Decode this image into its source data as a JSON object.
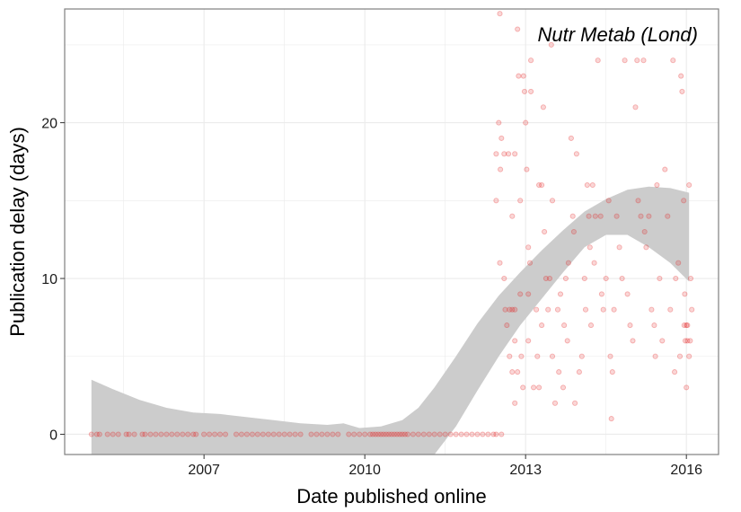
{
  "chart_data": {
    "type": "scatter",
    "title": "",
    "annotation": "Nutr Metab (Lond)",
    "xlabel": "Date published online",
    "ylabel": "Publication delay (days)",
    "xlim": [
      2004.4,
      2016.6
    ],
    "ylim": [
      -1.3,
      27.3
    ],
    "x_ticks": [
      2007,
      2010,
      2013,
      2016
    ],
    "x_tick_labels": [
      "2007",
      "2010",
      "2013",
      "2016"
    ],
    "y_ticks": [
      0,
      10,
      20
    ],
    "y_tick_labels": [
      "0",
      "10",
      "20"
    ],
    "grid": true,
    "legend": "none",
    "colors": {
      "points": "#e31a1c",
      "smooth_band": "#cccccc",
      "panel_border": "#7f7f7f",
      "grid": "#ebebeb"
    },
    "point_alpha": 0.18,
    "series": [
      {
        "points": [
          [
            2004.9,
            0
          ],
          [
            2005.0,
            0
          ],
          [
            2005.05,
            0
          ],
          [
            2005.2,
            0
          ],
          [
            2005.3,
            0
          ],
          [
            2005.4,
            0
          ],
          [
            2005.55,
            0
          ],
          [
            2005.6,
            0
          ],
          [
            2005.7,
            0
          ],
          [
            2005.85,
            0
          ],
          [
            2005.9,
            0
          ],
          [
            2006.0,
            0
          ],
          [
            2006.1,
            0
          ],
          [
            2006.2,
            0
          ],
          [
            2006.3,
            0
          ],
          [
            2006.4,
            0
          ],
          [
            2006.5,
            0
          ],
          [
            2006.6,
            0
          ],
          [
            2006.7,
            0
          ],
          [
            2006.8,
            0
          ],
          [
            2006.85,
            0
          ],
          [
            2007.0,
            0
          ],
          [
            2007.1,
            0
          ],
          [
            2007.2,
            0
          ],
          [
            2007.3,
            0
          ],
          [
            2007.4,
            0
          ],
          [
            2007.6,
            0
          ],
          [
            2007.7,
            0
          ],
          [
            2007.8,
            0
          ],
          [
            2007.9,
            0
          ],
          [
            2008.0,
            0
          ],
          [
            2008.1,
            0
          ],
          [
            2008.2,
            0
          ],
          [
            2008.3,
            0
          ],
          [
            2008.4,
            0
          ],
          [
            2008.5,
            0
          ],
          [
            2008.6,
            0
          ],
          [
            2008.7,
            0
          ],
          [
            2008.8,
            0
          ],
          [
            2009.0,
            0
          ],
          [
            2009.1,
            0
          ],
          [
            2009.2,
            0
          ],
          [
            2009.3,
            0
          ],
          [
            2009.4,
            0
          ],
          [
            2009.5,
            0
          ],
          [
            2009.7,
            0
          ],
          [
            2009.8,
            0
          ],
          [
            2009.9,
            0
          ],
          [
            2010.0,
            0
          ],
          [
            2010.1,
            0
          ],
          [
            2010.15,
            0
          ],
          [
            2010.2,
            0
          ],
          [
            2010.25,
            0
          ],
          [
            2010.3,
            0
          ],
          [
            2010.35,
            0
          ],
          [
            2010.4,
            0
          ],
          [
            2010.45,
            0
          ],
          [
            2010.5,
            0
          ],
          [
            2010.55,
            0
          ],
          [
            2010.6,
            0
          ],
          [
            2010.65,
            0
          ],
          [
            2010.7,
            0
          ],
          [
            2010.75,
            0
          ],
          [
            2010.8,
            0
          ],
          [
            2010.9,
            0
          ],
          [
            2011.0,
            0
          ],
          [
            2011.1,
            0
          ],
          [
            2011.2,
            0
          ],
          [
            2011.3,
            0
          ],
          [
            2011.4,
            0
          ],
          [
            2011.5,
            0
          ],
          [
            2011.6,
            0
          ],
          [
            2011.7,
            0
          ],
          [
            2011.8,
            0
          ],
          [
            2011.9,
            0
          ],
          [
            2012.0,
            0
          ],
          [
            2012.1,
            0
          ],
          [
            2012.2,
            0
          ],
          [
            2012.3,
            0
          ],
          [
            2012.4,
            0
          ],
          [
            2012.45,
            0
          ],
          [
            2012.55,
            0
          ],
          [
            2012.52,
            27
          ],
          [
            2012.5,
            20
          ],
          [
            2012.55,
            19
          ],
          [
            2012.45,
            18
          ],
          [
            2012.6,
            18
          ],
          [
            2012.68,
            18
          ],
          [
            2012.45,
            15
          ],
          [
            2012.53,
            17
          ],
          [
            2012.52,
            11
          ],
          [
            2012.6,
            10
          ],
          [
            2012.62,
            8
          ],
          [
            2012.7,
            8
          ],
          [
            2012.75,
            8
          ],
          [
            2012.8,
            8
          ],
          [
            2012.65,
            7
          ],
          [
            2012.8,
            6
          ],
          [
            2012.7,
            5
          ],
          [
            2012.75,
            4
          ],
          [
            2012.85,
            4
          ],
          [
            2012.8,
            2
          ],
          [
            2012.75,
            14
          ],
          [
            2012.8,
            18
          ],
          [
            2012.85,
            26
          ],
          [
            2012.87,
            23
          ],
          [
            2012.9,
            15
          ],
          [
            2012.9,
            9
          ],
          [
            2012.92,
            5
          ],
          [
            2012.95,
            3
          ],
          [
            2012.96,
            23
          ],
          [
            2012.98,
            22
          ],
          [
            2013.0,
            20
          ],
          [
            2013.02,
            17
          ],
          [
            2013.05,
            12
          ],
          [
            2013.08,
            11
          ],
          [
            2013.05,
            9
          ],
          [
            2013.05,
            6
          ],
          [
            2013.1,
            24
          ],
          [
            2013.1,
            22
          ],
          [
            2013.15,
            3
          ],
          [
            2013.2,
            8
          ],
          [
            2013.22,
            5
          ],
          [
            2013.25,
            3
          ],
          [
            2013.25,
            16
          ],
          [
            2013.3,
            16
          ],
          [
            2013.3,
            7
          ],
          [
            2013.33,
            21
          ],
          [
            2013.35,
            13
          ],
          [
            2013.38,
            10
          ],
          [
            2013.42,
            8
          ],
          [
            2013.45,
            10
          ],
          [
            2013.48,
            25
          ],
          [
            2013.5,
            15
          ],
          [
            2013.5,
            5
          ],
          [
            2013.55,
            2
          ],
          [
            2013.6,
            8
          ],
          [
            2013.62,
            4
          ],
          [
            2013.65,
            9
          ],
          [
            2013.7,
            3
          ],
          [
            2013.72,
            7
          ],
          [
            2013.75,
            10
          ],
          [
            2013.78,
            6
          ],
          [
            2013.8,
            11
          ],
          [
            2013.85,
            19
          ],
          [
            2013.88,
            14
          ],
          [
            2013.9,
            13
          ],
          [
            2013.92,
            2
          ],
          [
            2013.95,
            18
          ],
          [
            2014.0,
            4
          ],
          [
            2014.05,
            5
          ],
          [
            2014.1,
            10
          ],
          [
            2014.12,
            8
          ],
          [
            2014.15,
            16
          ],
          [
            2014.18,
            14
          ],
          [
            2014.2,
            12
          ],
          [
            2014.22,
            7
          ],
          [
            2014.25,
            16
          ],
          [
            2014.28,
            11
          ],
          [
            2014.3,
            14
          ],
          [
            2014.35,
            24
          ],
          [
            2014.4,
            14
          ],
          [
            2014.42,
            9
          ],
          [
            2014.45,
            8
          ],
          [
            2014.5,
            10
          ],
          [
            2014.55,
            15
          ],
          [
            2014.58,
            5
          ],
          [
            2014.6,
            1
          ],
          [
            2014.62,
            4
          ],
          [
            2014.65,
            8
          ],
          [
            2014.7,
            14
          ],
          [
            2014.75,
            12
          ],
          [
            2014.8,
            10
          ],
          [
            2014.85,
            24
          ],
          [
            2014.9,
            9
          ],
          [
            2014.95,
            7
          ],
          [
            2015.0,
            6
          ],
          [
            2015.05,
            21
          ],
          [
            2015.08,
            24
          ],
          [
            2015.1,
            15
          ],
          [
            2015.15,
            14
          ],
          [
            2015.2,
            24
          ],
          [
            2015.22,
            13
          ],
          [
            2015.25,
            12
          ],
          [
            2015.3,
            14
          ],
          [
            2015.35,
            8
          ],
          [
            2015.4,
            7
          ],
          [
            2015.42,
            5
          ],
          [
            2015.45,
            16
          ],
          [
            2015.5,
            10
          ],
          [
            2015.55,
            6
          ],
          [
            2015.6,
            17
          ],
          [
            2015.65,
            14
          ],
          [
            2015.7,
            8
          ],
          [
            2015.75,
            24
          ],
          [
            2015.78,
            4
          ],
          [
            2015.8,
            10
          ],
          [
            2015.85,
            11
          ],
          [
            2015.88,
            5
          ],
          [
            2015.9,
            23
          ],
          [
            2015.92,
            22
          ],
          [
            2015.95,
            15
          ],
          [
            2015.97,
            9
          ],
          [
            2016.0,
            7
          ],
          [
            2016.02,
            6
          ],
          [
            2016.05,
            5
          ],
          [
            2016.0,
            3
          ],
          [
            2016.05,
            16
          ],
          [
            2016.08,
            10
          ],
          [
            2016.1,
            8
          ],
          [
            2015.96,
            7
          ],
          [
            2015.98,
            6
          ],
          [
            2016.02,
            7
          ],
          [
            2016.07,
            6
          ]
        ]
      }
    ],
    "smooth_band": {
      "x": [
        2004.9,
        2005.3,
        2005.8,
        2006.3,
        2006.8,
        2007.3,
        2007.8,
        2008.3,
        2008.8,
        2009.3,
        2009.6,
        2009.9,
        2010.3,
        2010.7,
        2011.0,
        2011.3,
        2011.7,
        2012.1,
        2012.5,
        2012.9,
        2013.3,
        2013.7,
        2014.1,
        2014.5,
        2014.9,
        2015.3,
        2015.7,
        2016.05
      ],
      "upper": [
        3.5,
        2.9,
        2.2,
        1.7,
        1.4,
        1.3,
        1.1,
        0.9,
        0.7,
        0.6,
        0.7,
        0.4,
        0.5,
        0.9,
        1.7,
        3.0,
        5.0,
        7.1,
        8.9,
        10.4,
        11.8,
        13.1,
        14.3,
        15.1,
        15.7,
        15.9,
        15.8,
        15.5
      ],
      "lower": [
        -1.3,
        -1.3,
        -1.3,
        -1.3,
        -1.3,
        -1.3,
        -1.3,
        -1.3,
        -1.3,
        -1.3,
        -1.3,
        -1.3,
        -1.3,
        -1.3,
        -1.3,
        -1.3,
        0.5,
        2.8,
        5.0,
        7.0,
        8.7,
        10.4,
        12.0,
        12.8,
        12.8,
        12.0,
        11.0,
        9.8
      ]
    }
  }
}
